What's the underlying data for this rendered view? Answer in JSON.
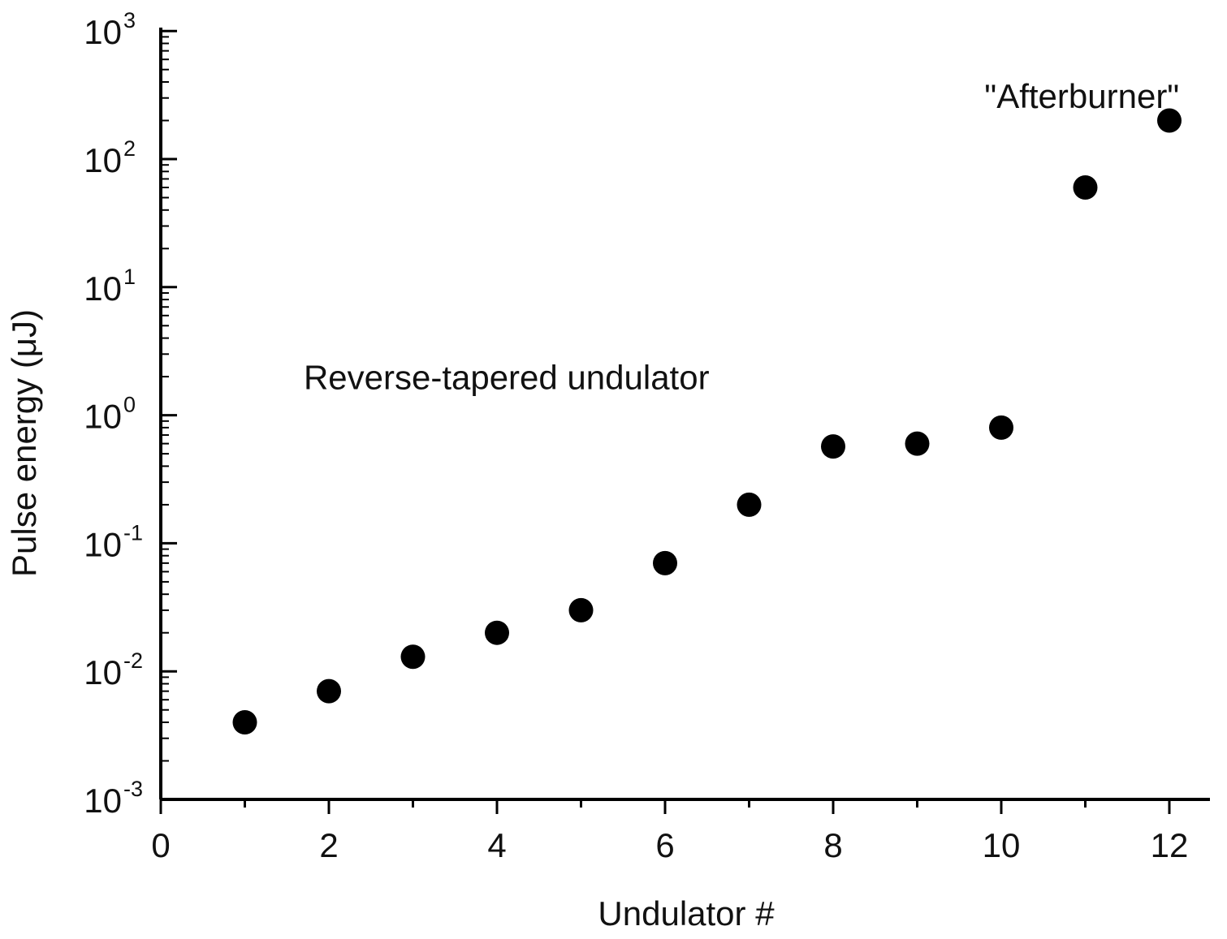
{
  "chart_data": {
    "type": "scatter",
    "title": "",
    "xlabel": "Undulator #",
    "ylabel": "Pulse energy (μJ)",
    "xlim": [
      0,
      12.5
    ],
    "ylim": [
      0.001,
      1000
    ],
    "yscale": "log",
    "grid": false,
    "legend": "none",
    "x_ticks": [
      0,
      2,
      4,
      6,
      8,
      10,
      12
    ],
    "x_tick_labels": [
      "0",
      "2",
      "4",
      "6",
      "8",
      "10",
      "12"
    ],
    "y_ticks": [
      0.001,
      0.01,
      0.1,
      1,
      10,
      100,
      1000
    ],
    "y_tick_labels": [
      {
        "base": "10",
        "exp": "-3"
      },
      {
        "base": "10",
        "exp": "-2"
      },
      {
        "base": "10",
        "exp": "-1"
      },
      {
        "base": "10",
        "exp": "0"
      },
      {
        "base": "10",
        "exp": "1"
      },
      {
        "base": "10",
        "exp": "2"
      },
      {
        "base": "10",
        "exp": "3"
      }
    ],
    "marker_color": "#000000",
    "series": [
      {
        "x": [
          1,
          2,
          3,
          4,
          5,
          6,
          7,
          8,
          9,
          10,
          11,
          12
        ],
        "y": [
          0.004,
          0.007,
          0.013,
          0.02,
          0.03,
          0.07,
          0.2,
          0.57,
          0.6,
          0.8,
          60,
          200
        ]
      }
    ],
    "annotations": [
      {
        "text": "\"Afterburner\"",
        "x": 9.8,
        "y": 250
      },
      {
        "text": "Reverse-tapered undulator",
        "x": 1.7,
        "y": 1.6
      }
    ]
  }
}
